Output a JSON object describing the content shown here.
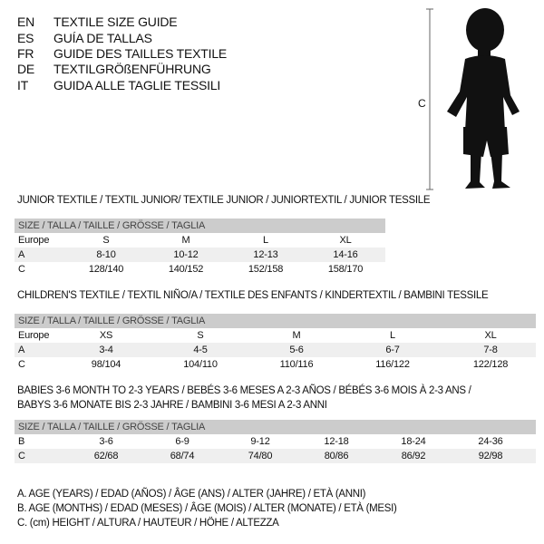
{
  "languages": [
    {
      "code": "EN",
      "title": "TEXTILE SIZE GUIDE"
    },
    {
      "code": "ES",
      "title": "GUÍA DE TALLAS"
    },
    {
      "code": "FR",
      "title": "GUIDE DES TAILLES TEXTILE"
    },
    {
      "code": "DE",
      "title": "TEXTILGRÖßENFÜHRUNG"
    },
    {
      "code": "IT",
      "title": "GUIDA ALLE TAGLIE TESSILI"
    }
  ],
  "figure": {
    "measure_label": "C"
  },
  "size_header": "SIZE / TALLA / TAILLE / GRÖSSE / TAGLIA",
  "junior": {
    "title": "JUNIOR TEXTILE / TEXTIL JUNIOR/ TEXTILE JUNIOR / JUNIORTEXTIL / JUNIOR TESSILE",
    "rows": [
      {
        "label": "Europe",
        "values": [
          "S",
          "M",
          "L",
          "XL"
        ]
      },
      {
        "label": "A",
        "values": [
          "8-10",
          "10-12",
          "12-13",
          "14-16"
        ]
      },
      {
        "label": "C",
        "values": [
          "128/140",
          "140/152",
          "152/158",
          "158/170"
        ]
      }
    ]
  },
  "children": {
    "title": "CHILDREN'S TEXTILE / TEXTIL NIÑO/A / TEXTILE DES ENFANTS / KINDERTEXTIL / BAMBINI TESSILE",
    "rows": [
      {
        "label": "Europe",
        "values": [
          "XS",
          "S",
          "M",
          "L",
          "XL"
        ]
      },
      {
        "label": "A",
        "values": [
          "3-4",
          "4-5",
          "5-6",
          "6-7",
          "7-8"
        ]
      },
      {
        "label": "C",
        "values": [
          "98/104",
          "104/110",
          "110/116",
          "116/122",
          "122/128"
        ]
      }
    ]
  },
  "babies": {
    "title_line1": "BABIES 3-6 MONTH TO 2-3 YEARS / BEBÉS 3-6 MESES A 2-3 AÑOS / BÉBÉS 3-6 MOIS À 2-3 ANS /",
    "title_line2": "BABYS 3-6 MONATE BIS 2-3 JAHRE / BAMBINI 3-6 MESI A 2-3 ANNI",
    "rows": [
      {
        "label": "B",
        "values": [
          "3-6",
          "6-9",
          "9-12",
          "12-18",
          "18-24",
          "24-36"
        ]
      },
      {
        "label": "C",
        "values": [
          "62/68",
          "68/74",
          "74/80",
          "80/86",
          "86/92",
          "92/98"
        ]
      }
    ]
  },
  "legend": [
    "A. AGE (YEARS) / EDAD (AÑOS) / ÂGE (ANS) / ALTER (JAHRE) / ETÀ (ANNI)",
    "B. AGE (MONTHS) / EDAD (MESES) / ÂGE (MOIS) / ALTER (MONATE) / ETÀ (MESI)",
    "C. (cm) HEIGHT / ALTURA / HAUTEUR / HÖHE / ALTEZZA"
  ]
}
